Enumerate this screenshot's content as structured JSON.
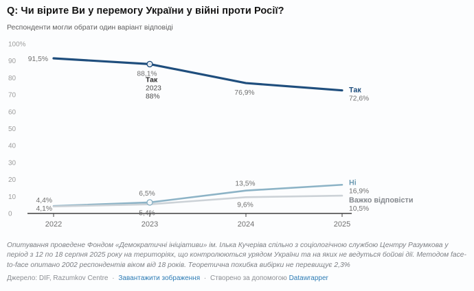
{
  "chart_data": {
    "type": "line",
    "title": "Q: Чи вірите Ви у перемогу України у війні проти Росії?",
    "subtitle": "Респонденти могли обрати один варіант відповіді",
    "categories": [
      "2022",
      "2023",
      "2024",
      "2025"
    ],
    "series": [
      {
        "key": "yes",
        "name": "Так",
        "values": [
          91.5,
          88.1,
          76.9,
          72.6
        ],
        "point_labels": [
          "91,5%",
          "88,1%",
          "76,9%",
          ""
        ],
        "end_label": {
          "name": "Так",
          "value": "72,6%"
        },
        "color": "#1f4e7d",
        "label_color": "#1f4e7d"
      },
      {
        "key": "no",
        "name": "Ні",
        "values": [
          4.4,
          6.5,
          13.5,
          16.9
        ],
        "point_labels": [
          "4,4%",
          "6,5%",
          "13,5%",
          ""
        ],
        "end_label": {
          "name": "Ні",
          "value": "16,9%"
        },
        "color": "#8cb3c6",
        "label_color": "#6f9cb4"
      },
      {
        "key": "hard-to-answer",
        "name": "Важко відповісти",
        "values": [
          4.1,
          5.4,
          9.6,
          10.5
        ],
        "point_labels": [
          "4,1%",
          "5,4%",
          "9,6%",
          ""
        ],
        "end_label": {
          "name": "Важко відповісти",
          "value": "10,5%"
        },
        "color": "#ccd2d7",
        "label_color": "#84888d"
      }
    ],
    "xlabel": "",
    "ylabel": "",
    "ylim": [
      0,
      100
    ],
    "y_ticks": [
      "100%",
      "90",
      "80",
      "70",
      "60",
      "50",
      "40",
      "30",
      "20",
      "10",
      "0"
    ],
    "grid": false,
    "legend_position": "end-of-line",
    "tooltip": {
      "series": "Так",
      "category": "2023",
      "value": "88%",
      "category_index": 1
    },
    "value_label_color": "#6f6f6f",
    "axis_color": "#3f3f3f",
    "tick_label_color": "#9c9c9c",
    "year_label_color": "#6f6f6f"
  },
  "footer": {
    "notes": "Опитування проведене Фондом «Демократичні ініціативи» ім. Ілька Кучеріва спільно з соціологічною службою Центру Разумкова у період з 12 по 18 серпня 2025 року на територіях, що контролюються урядом України та на яких не ведуться бойові дії. Методом face-to-face опитано 2002 респондентів віком від 18 років. Теоретична похибка вибірки не перевищує 2,3%",
    "source_prefix": "Джерело: DIF, Razumkov Centre",
    "separator": "·",
    "download_link": "Завантажити зображення",
    "created_with": "Створено за допомогою",
    "created_with_link": "Datawrapper"
  }
}
